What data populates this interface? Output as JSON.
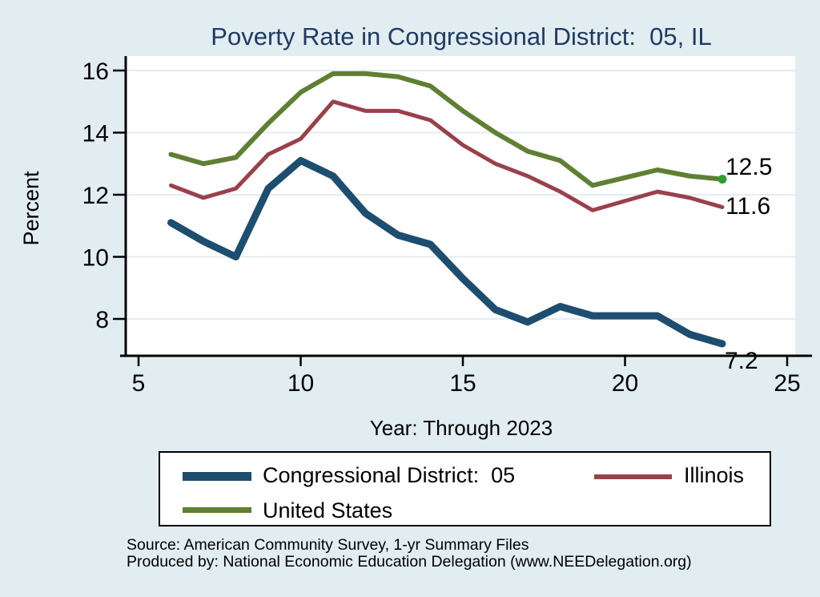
{
  "page": {
    "background": "#e2edf1",
    "plot_background": "#ffffff",
    "grid_color": "#e3edf2",
    "axis_color": "#000000",
    "title_color": "#203a64"
  },
  "chart_data": {
    "type": "line",
    "title": "Poverty Rate in Congressional District:  05, IL",
    "xlabel": "Year: Through 2023",
    "ylabel": "Percent",
    "xlim": [
      5,
      25
    ],
    "ylim": [
      8,
      16
    ],
    "grid": "horizontal-y",
    "legend_position": "bottom",
    "x_ticks": [
      5,
      10,
      15,
      20,
      25
    ],
    "y_ticks": [
      8,
      10,
      12,
      14,
      16
    ],
    "x_values": [
      6,
      7,
      8,
      9,
      10,
      11,
      12,
      13,
      14,
      15,
      16,
      17,
      18,
      19,
      20,
      21,
      22,
      23
    ],
    "years": [
      2006,
      2007,
      2008,
      2009,
      2010,
      2011,
      2012,
      2013,
      2014,
      2015,
      2016,
      2017,
      2018,
      2019,
      2020,
      2021,
      2022,
      2023
    ],
    "series": [
      {
        "name": "Congressional District:  05",
        "color": "#1d4d6f",
        "line_width": 9,
        "values": [
          11.1,
          10.5,
          10.0,
          12.2,
          13.1,
          12.6,
          11.4,
          10.7,
          10.4,
          9.3,
          8.3,
          7.9,
          8.4,
          8.1,
          8.1,
          8.1,
          7.5,
          7.2
        ],
        "end_label": "7.2"
      },
      {
        "name": "Illinois",
        "color": "#99414a",
        "line_width": 5,
        "values": [
          12.3,
          11.9,
          12.2,
          13.3,
          13.8,
          15.0,
          14.7,
          14.7,
          14.4,
          13.6,
          13.0,
          12.6,
          12.1,
          11.5,
          11.8,
          12.1,
          11.9,
          11.6
        ],
        "end_label": "11.6"
      },
      {
        "name": "United States",
        "color": "#5f7f33",
        "line_width": 6,
        "values": [
          13.3,
          13.0,
          13.2,
          14.3,
          15.3,
          15.9,
          15.9,
          15.8,
          15.5,
          14.7,
          14.0,
          13.4,
          13.1,
          12.3,
          12.55,
          12.8,
          12.6,
          12.5
        ],
        "end_label": "12.5",
        "end_marker_color": "#2f9e2f"
      }
    ]
  },
  "source": {
    "line1": "Source: American Community Survey, 1-yr Summary Files",
    "line2": "Produced by: National Economic Education Delegation (www.NEEDelegation.org)"
  }
}
